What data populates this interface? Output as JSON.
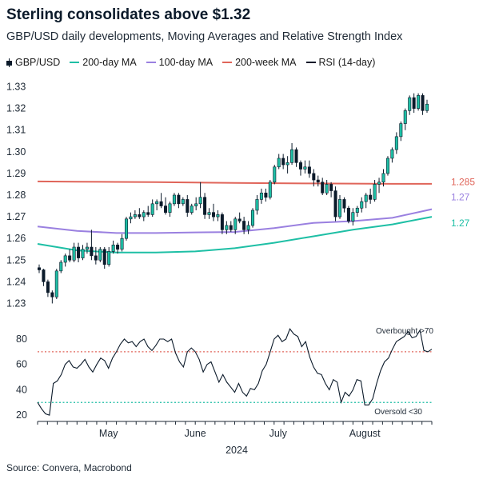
{
  "header": {
    "title": "Sterling consolidates above $1.32",
    "subtitle": "GBP/USD daily developments, Moving Averages and Relative Strength Index"
  },
  "legend": [
    {
      "label": "GBP/USD",
      "color": "#0b1a2a",
      "kind": "candle"
    },
    {
      "label": "200-day MA",
      "color": "#1ebfa5",
      "kind": "line"
    },
    {
      "label": "100-day MA",
      "color": "#9a80e0",
      "kind": "line"
    },
    {
      "label": "200-week MA",
      "color": "#e0655a",
      "kind": "line"
    },
    {
      "label": "RSI (14-day)",
      "color": "#0b1a2a",
      "kind": "line"
    }
  ],
  "source": "Source: Convera, Macrobond",
  "chart_data": [
    {
      "type": "candlestick",
      "title": "Sterling consolidates above $1.32",
      "ylim": [
        1.225,
        1.335
      ],
      "yticks": [
        "1.23",
        "1.24",
        "1.25",
        "1.26",
        "1.27",
        "1.28",
        "1.29",
        "1.30",
        "1.31",
        "1.32",
        "1.33"
      ],
      "x_range": [
        0,
        100
      ],
      "up_color": "#1ebfa5",
      "down_color": "#0b1a2a",
      "candles": [
        [
          1.2465,
          1.248,
          1.244,
          1.2455
        ],
        [
          1.2455,
          1.246,
          1.238,
          1.24
        ],
        [
          1.24,
          1.241,
          1.233,
          1.235
        ],
        [
          1.235,
          1.236,
          1.23,
          1.233
        ],
        [
          1.233,
          1.246,
          1.232,
          1.245
        ],
        [
          1.245,
          1.25,
          1.244,
          1.249
        ],
        [
          1.249,
          1.253,
          1.247,
          1.252
        ],
        [
          1.252,
          1.255,
          1.249,
          1.25
        ],
        [
          1.25,
          1.258,
          1.249,
          1.256
        ],
        [
          1.256,
          1.258,
          1.249,
          1.251
        ],
        [
          1.251,
          1.257,
          1.25,
          1.255
        ],
        [
          1.255,
          1.258,
          1.253,
          1.256
        ],
        [
          1.256,
          1.264,
          1.25,
          1.252
        ],
        [
          1.252,
          1.256,
          1.248,
          1.25
        ],
        [
          1.25,
          1.256,
          1.249,
          1.255
        ],
        [
          1.255,
          1.256,
          1.246,
          1.248
        ],
        [
          1.248,
          1.256,
          1.247,
          1.254
        ],
        [
          1.254,
          1.259,
          1.253,
          1.257
        ],
        [
          1.257,
          1.258,
          1.253,
          1.255
        ],
        [
          1.255,
          1.262,
          1.254,
          1.26
        ],
        [
          1.26,
          1.27,
          1.259,
          1.269
        ],
        [
          1.269,
          1.272,
          1.267,
          1.27
        ],
        [
          1.27,
          1.273,
          1.269,
          1.271
        ],
        [
          1.271,
          1.274,
          1.269,
          1.27
        ],
        [
          1.27,
          1.273,
          1.268,
          1.272
        ],
        [
          1.272,
          1.275,
          1.27,
          1.271
        ],
        [
          1.271,
          1.278,
          1.27,
          1.276
        ],
        [
          1.276,
          1.278,
          1.273,
          1.277
        ],
        [
          1.277,
          1.281,
          1.274,
          1.275
        ],
        [
          1.275,
          1.279,
          1.271,
          1.272
        ],
        [
          1.272,
          1.277,
          1.27,
          1.276
        ],
        [
          1.276,
          1.281,
          1.275,
          1.28
        ],
        [
          1.28,
          1.281,
          1.274,
          1.276
        ],
        [
          1.276,
          1.279,
          1.275,
          1.278
        ],
        [
          1.278,
          1.28,
          1.27,
          1.272
        ],
        [
          1.272,
          1.276,
          1.271,
          1.275
        ],
        [
          1.275,
          1.279,
          1.273,
          1.276
        ],
        [
          1.276,
          1.286,
          1.274,
          1.279
        ],
        [
          1.279,
          1.281,
          1.269,
          1.271
        ],
        [
          1.271,
          1.274,
          1.269,
          1.272
        ],
        [
          1.272,
          1.276,
          1.268,
          1.27
        ],
        [
          1.27,
          1.273,
          1.268,
          1.271
        ],
        [
          1.271,
          1.272,
          1.262,
          1.264
        ],
        [
          1.264,
          1.268,
          1.262,
          1.266
        ],
        [
          1.266,
          1.268,
          1.263,
          1.264
        ],
        [
          1.264,
          1.27,
          1.262,
          1.269
        ],
        [
          1.269,
          1.272,
          1.267,
          1.268
        ],
        [
          1.268,
          1.27,
          1.262,
          1.264
        ],
        [
          1.264,
          1.268,
          1.262,
          1.266
        ],
        [
          1.266,
          1.274,
          1.265,
          1.273
        ],
        [
          1.273,
          1.28,
          1.271,
          1.278
        ],
        [
          1.278,
          1.283,
          1.276,
          1.281
        ],
        [
          1.281,
          1.283,
          1.277,
          1.279
        ],
        [
          1.279,
          1.287,
          1.278,
          1.286
        ],
        [
          1.286,
          1.294,
          1.285,
          1.293
        ],
        [
          1.293,
          1.299,
          1.292,
          1.297
        ],
        [
          1.297,
          1.299,
          1.292,
          1.294
        ],
        [
          1.294,
          1.298,
          1.29,
          1.295
        ],
        [
          1.295,
          1.304,
          1.294,
          1.301
        ],
        [
          1.301,
          1.302,
          1.293,
          1.295
        ],
        [
          1.295,
          1.296,
          1.289,
          1.292
        ],
        [
          1.292,
          1.296,
          1.29,
          1.293
        ],
        [
          1.293,
          1.296,
          1.288,
          1.29
        ],
        [
          1.29,
          1.292,
          1.284,
          1.287
        ],
        [
          1.287,
          1.289,
          1.284,
          1.286
        ],
        [
          1.286,
          1.288,
          1.28,
          1.281
        ],
        [
          1.281,
          1.287,
          1.28,
          1.285
        ],
        [
          1.285,
          1.286,
          1.279,
          1.282
        ],
        [
          1.282,
          1.284,
          1.268,
          1.27
        ],
        [
          1.27,
          1.28,
          1.269,
          1.278
        ],
        [
          1.278,
          1.279,
          1.272,
          1.274
        ],
        [
          1.274,
          1.275,
          1.267,
          1.268
        ],
        [
          1.268,
          1.274,
          1.266,
          1.272
        ],
        [
          1.272,
          1.275,
          1.27,
          1.274
        ],
        [
          1.274,
          1.279,
          1.272,
          1.277
        ],
        [
          1.277,
          1.281,
          1.274,
          1.28
        ],
        [
          1.28,
          1.283,
          1.276,
          1.278
        ],
        [
          1.278,
          1.287,
          1.277,
          1.285
        ],
        [
          1.285,
          1.288,
          1.281,
          1.286
        ],
        [
          1.286,
          1.292,
          1.284,
          1.29
        ],
        [
          1.29,
          1.298,
          1.289,
          1.297
        ],
        [
          1.297,
          1.302,
          1.295,
          1.301
        ],
        [
          1.301,
          1.309,
          1.299,
          1.307
        ],
        [
          1.307,
          1.314,
          1.305,
          1.313
        ],
        [
          1.313,
          1.32,
          1.31,
          1.319
        ],
        [
          1.319,
          1.326,
          1.317,
          1.325
        ],
        [
          1.325,
          1.327,
          1.318,
          1.32
        ],
        [
          1.32,
          1.327,
          1.319,
          1.326
        ],
        [
          1.326,
          1.327,
          1.317,
          1.319
        ],
        [
          1.319,
          1.324,
          1.318,
          1.322
        ]
      ],
      "moving_averages": [
        {
          "name": "200-day MA",
          "color": "#1ebfa5",
          "x": [
            0,
            10,
            20,
            30,
            40,
            50,
            60,
            70,
            80,
            90,
            100
          ],
          "values": [
            1.2575,
            1.2545,
            1.2535,
            1.2535,
            1.254,
            1.2555,
            1.258,
            1.261,
            1.264,
            1.2665,
            1.27
          ],
          "end_label": "1.27"
        },
        {
          "name": "100-day MA",
          "color": "#9a80e0",
          "x": [
            0,
            10,
            20,
            30,
            40,
            50,
            60,
            70,
            80,
            90,
            100
          ],
          "values": [
            1.2655,
            1.2635,
            1.2625,
            1.2625,
            1.2628,
            1.263,
            1.2648,
            1.2672,
            1.268,
            1.2695,
            1.2735
          ],
          "end_label": "1.27"
        },
        {
          "name": "200-week MA",
          "color": "#e0655a",
          "x": [
            0,
            10,
            20,
            30,
            40,
            50,
            60,
            70,
            80,
            90,
            100
          ],
          "values": [
            1.2863,
            1.2862,
            1.2861,
            1.286,
            1.2858,
            1.2856,
            1.2855,
            1.2854,
            1.2853,
            1.2852,
            1.2852
          ],
          "end_label": "1.285"
        }
      ]
    },
    {
      "type": "line",
      "name": "RSI (14-day)",
      "ylim": [
        15,
        92
      ],
      "yticks": [
        "20",
        "40",
        "60",
        "80"
      ],
      "x_range": [
        0,
        100
      ],
      "x": [
        0,
        1,
        2,
        3,
        4,
        5,
        6,
        7,
        8,
        9,
        10,
        11,
        12,
        13,
        14,
        15,
        16,
        17,
        18,
        19,
        20,
        21,
        22,
        23,
        24,
        25,
        26,
        27,
        28,
        29,
        30,
        31,
        32,
        33,
        34,
        35,
        36,
        37,
        38,
        39,
        40,
        41,
        42,
        43,
        44,
        45,
        46,
        47,
        48,
        49,
        50,
        51,
        52,
        53,
        54,
        55,
        56,
        57,
        58,
        59,
        60,
        61,
        62,
        63,
        64,
        65,
        66,
        67,
        68,
        69,
        70,
        71,
        72,
        73,
        74,
        75,
        76,
        77,
        78,
        79,
        80,
        81,
        82,
        83,
        84,
        85,
        86,
        87,
        88,
        89,
        90,
        91,
        92,
        93,
        94,
        95,
        96,
        97,
        98,
        99,
        100
      ],
      "values": [
        30,
        25,
        21,
        20,
        45,
        47,
        52,
        60,
        63,
        58,
        57,
        60,
        64,
        58,
        54,
        60,
        65,
        63,
        57,
        65,
        70,
        76,
        80,
        77,
        78,
        74,
        78,
        80,
        74,
        71,
        75,
        80,
        80,
        78,
        80,
        69,
        62,
        58,
        70,
        73,
        70,
        64,
        54,
        60,
        62,
        54,
        46,
        52,
        46,
        42,
        38,
        45,
        38,
        35,
        41,
        40,
        45,
        55,
        60,
        70,
        80,
        83,
        78,
        80,
        88,
        84,
        82,
        74,
        78,
        66,
        58,
        53,
        52,
        45,
        40,
        48,
        46,
        30,
        38,
        35,
        40,
        48,
        47,
        28,
        28,
        33,
        45,
        55,
        62,
        65,
        72,
        78,
        80,
        82,
        86,
        81,
        82,
        87,
        71,
        70,
        72
      ],
      "overbought": {
        "value": 70,
        "label": "Overbought >70",
        "color": "#e0655a"
      },
      "oversold": {
        "value": 30,
        "label": "Oversold <30",
        "color": "#1ebfa5"
      }
    }
  ],
  "x_axis": {
    "ticks": [
      {
        "pos": 18,
        "label": "May"
      },
      {
        "pos": 40,
        "label": "June"
      },
      {
        "pos": 61,
        "label": "July"
      },
      {
        "pos": 83,
        "label": "August"
      }
    ],
    "year_label": "2024"
  }
}
